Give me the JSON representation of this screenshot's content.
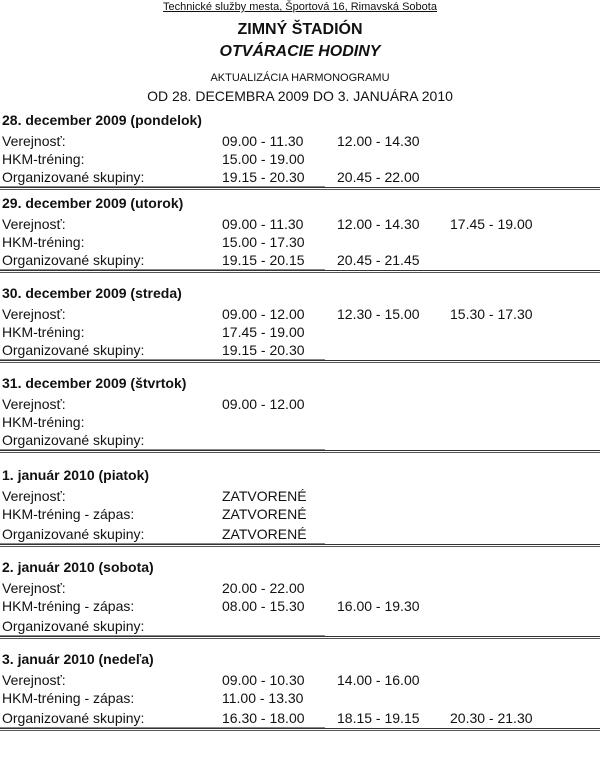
{
  "header": {
    "organization": "Technické služby mesta, Športová 16, Rimavská Sobota",
    "title": "ZIMNÝ ŠTADIÓN",
    "subtitle": "OTVÁRACIE HODINY",
    "update_label": "AKTUALIZÁCIA HARMONOGRAMU",
    "date_range": "OD 28. DECEMBRA 2009 DO 3. JANUÁRA 2010"
  },
  "days": [
    {
      "heading": "28. december 2009 (pondelok)",
      "rows": [
        {
          "label": "Verejnosť:",
          "times": [
            "09.00 - 11.30",
            "12.00 - 14.30"
          ]
        },
        {
          "label": "HKM-tréning:",
          "times": [
            "15.00 - 19.00"
          ]
        },
        {
          "label": "Organizované skupiny:",
          "times": [
            "19.15 - 20.30",
            "20.45 - 22.00"
          ]
        }
      ]
    },
    {
      "heading": "29. december 2009  (utorok)",
      "rows": [
        {
          "label": "Verejnosť:",
          "times": [
            "09.00 - 11.30",
            "12.00 - 14.30",
            "17.45 - 19.00"
          ]
        },
        {
          "label": "HKM-tréning:",
          "times": [
            "15.00 - 17.30"
          ]
        },
        {
          "label": "Organizované skupiny:",
          "times": [
            "19.15 - 20.15",
            "20.45 - 21.45"
          ]
        }
      ]
    },
    {
      "heading": "30. december 2009 (streda)",
      "rows": [
        {
          "label": "Verejnosť:",
          "times": [
            "09.00 - 12.00",
            "12.30 - 15.00",
            "15.30 - 17.30"
          ]
        },
        {
          "label": "HKM-tréning:",
          "times": [
            "17.45 - 19.00"
          ]
        },
        {
          "label": "Organizované skupiny:",
          "times": [
            "19.15 - 20.30"
          ]
        }
      ]
    },
    {
      "heading": "31. december 2009 (štvrtok)",
      "rows": [
        {
          "label": "Verejnosť:",
          "times": [
            "09.00 - 12.00"
          ]
        },
        {
          "label": "HKM-tréning:",
          "times": []
        },
        {
          "label": "Organizované skupiny:",
          "times": []
        }
      ]
    },
    {
      "heading": "1. január 2010 (piatok)",
      "rows": [
        {
          "label": "Verejnosť:",
          "times": [
            "ZATVORENÉ"
          ]
        },
        {
          "label": "HKM-tréning - zápas:",
          "times": [
            "ZATVORENÉ"
          ]
        },
        {
          "label": "Organizované skupiny:",
          "times": [
            "ZATVORENÉ"
          ]
        }
      ]
    },
    {
      "heading": "2. január 2010 (sobota)",
      "rows": [
        {
          "label": "Verejnosť:",
          "times": [
            "20.00 - 22.00"
          ]
        },
        {
          "label": "HKM-tréning - zápas:",
          "times": [
            "08.00 - 15.30",
            "16.00 - 19.30"
          ]
        },
        {
          "label": "Organizované skupiny:",
          "times": []
        }
      ]
    },
    {
      "heading": "3. január 2010 (nedeľa)",
      "rows": [
        {
          "label": "Verejnosť:",
          "times": [
            "09.00 - 10.30",
            "14.00 - 16.00"
          ]
        },
        {
          "label": "HKM-tréning - zápas:",
          "times": [
            "11.00 - 13.30"
          ]
        },
        {
          "label": "Organizované skupiny:",
          "times": [
            "16.30 - 18.00",
            "18.15 - 19.15",
            "20.30 - 21.30"
          ]
        }
      ]
    }
  ]
}
